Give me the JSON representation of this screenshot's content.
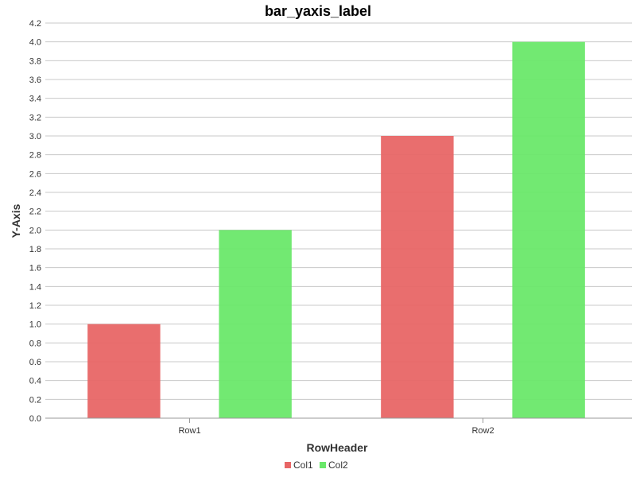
{
  "chart_data": {
    "type": "bar",
    "title": "bar_yaxis_label",
    "xlabel": "RowHeader",
    "ylabel": "Y-Axis",
    "categories": [
      "Row1",
      "Row2"
    ],
    "series": [
      {
        "name": "Col1",
        "values": [
          1.0,
          3.0
        ],
        "color": "#e86666"
      },
      {
        "name": "Col2",
        "values": [
          2.0,
          4.0
        ],
        "color": "#6ae86a"
      }
    ],
    "ylim": [
      0,
      4.2
    ],
    "ytick_step": 0.2,
    "grid": true,
    "legend_position": "bottom-center"
  }
}
